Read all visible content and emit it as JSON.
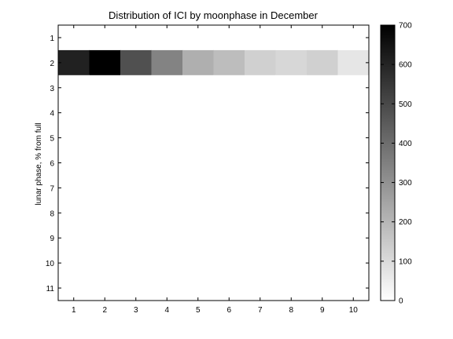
{
  "chart_data": {
    "type": "heatmap",
    "title": "Distribution of ICI by moonphase in December",
    "xlabel": "",
    "ylabel": "lunar phase, % from full",
    "x_categories": [
      "1",
      "2",
      "3",
      "4",
      "5",
      "6",
      "7",
      "8",
      "9",
      "10"
    ],
    "y_categories": [
      "1",
      "2",
      "3",
      "4",
      "5",
      "6",
      "7",
      "8",
      "9",
      "10",
      "11"
    ],
    "values": [
      [
        0,
        0,
        0,
        0,
        0,
        0,
        0,
        0,
        0,
        0
      ],
      [
        610,
        700,
        480,
        340,
        220,
        180,
        130,
        110,
        130,
        70
      ],
      [
        0,
        0,
        0,
        0,
        0,
        0,
        0,
        0,
        0,
        0
      ],
      [
        0,
        0,
        0,
        0,
        0,
        0,
        0,
        0,
        0,
        0
      ],
      [
        0,
        0,
        0,
        0,
        0,
        0,
        0,
        0,
        0,
        0
      ],
      [
        0,
        0,
        0,
        0,
        0,
        0,
        0,
        0,
        0,
        0
      ],
      [
        0,
        0,
        0,
        0,
        0,
        0,
        0,
        0,
        0,
        0
      ],
      [
        0,
        0,
        0,
        0,
        0,
        0,
        0,
        0,
        0,
        0
      ],
      [
        0,
        0,
        0,
        0,
        0,
        0,
        0,
        0,
        0,
        0
      ],
      [
        0,
        0,
        0,
        0,
        0,
        0,
        0,
        0,
        0,
        0
      ],
      [
        0,
        0,
        0,
        0,
        0,
        0,
        0,
        0,
        0,
        0
      ]
    ],
    "colorbar": {
      "range": [
        0,
        700
      ],
      "ticks": [
        "0",
        "100",
        "200",
        "300",
        "400",
        "500",
        "600",
        "700"
      ],
      "colormap": "gray-reversed"
    }
  }
}
